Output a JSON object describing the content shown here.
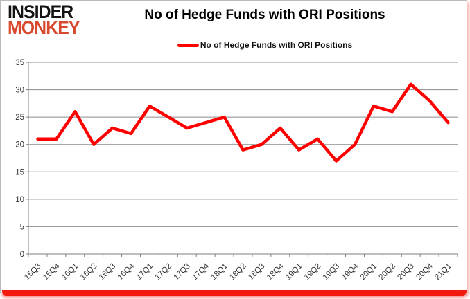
{
  "logo": {
    "line1": "INSIDER",
    "line2": "MONKEY",
    "line1_color": "#141414",
    "line2_color": "#d8492e"
  },
  "title": "No of Hedge Funds with ORI Positions",
  "legend": {
    "label": "No of Hedge Funds with ORI Positions",
    "marker_color": "#ff0000"
  },
  "chart_data": {
    "type": "line",
    "title": "No of Hedge Funds with ORI Positions",
    "categories": [
      "15Q3",
      "15Q4",
      "16Q1",
      "16Q2",
      "16Q3",
      "16Q4",
      "17Q1",
      "17Q2",
      "17Q3",
      "17Q4",
      "18Q1",
      "18Q2",
      "18Q3",
      "18Q4",
      "19Q1",
      "19Q2",
      "19Q3",
      "19Q4",
      "20Q1",
      "20Q2",
      "20Q3",
      "20Q4",
      "21Q1"
    ],
    "series": [
      {
        "name": "No of Hedge Funds with ORI Positions",
        "color": "#ff0000",
        "values": [
          21,
          21,
          26,
          20,
          23,
          22,
          27,
          25,
          23,
          24,
          25,
          19,
          20,
          23,
          19,
          21,
          17,
          20,
          27,
          26,
          31,
          28,
          24
        ]
      }
    ],
    "xlabel": "",
    "ylabel": "",
    "ylim": [
      0,
      35
    ],
    "ytick_step": 5,
    "grid": true,
    "legend_position": "top",
    "gridline_color": "#8c8c8c",
    "axis_color": "#7f7f7f",
    "tick_label_color": "#333333"
  },
  "frame": {
    "bottom_bar_color": "#f2190e"
  }
}
